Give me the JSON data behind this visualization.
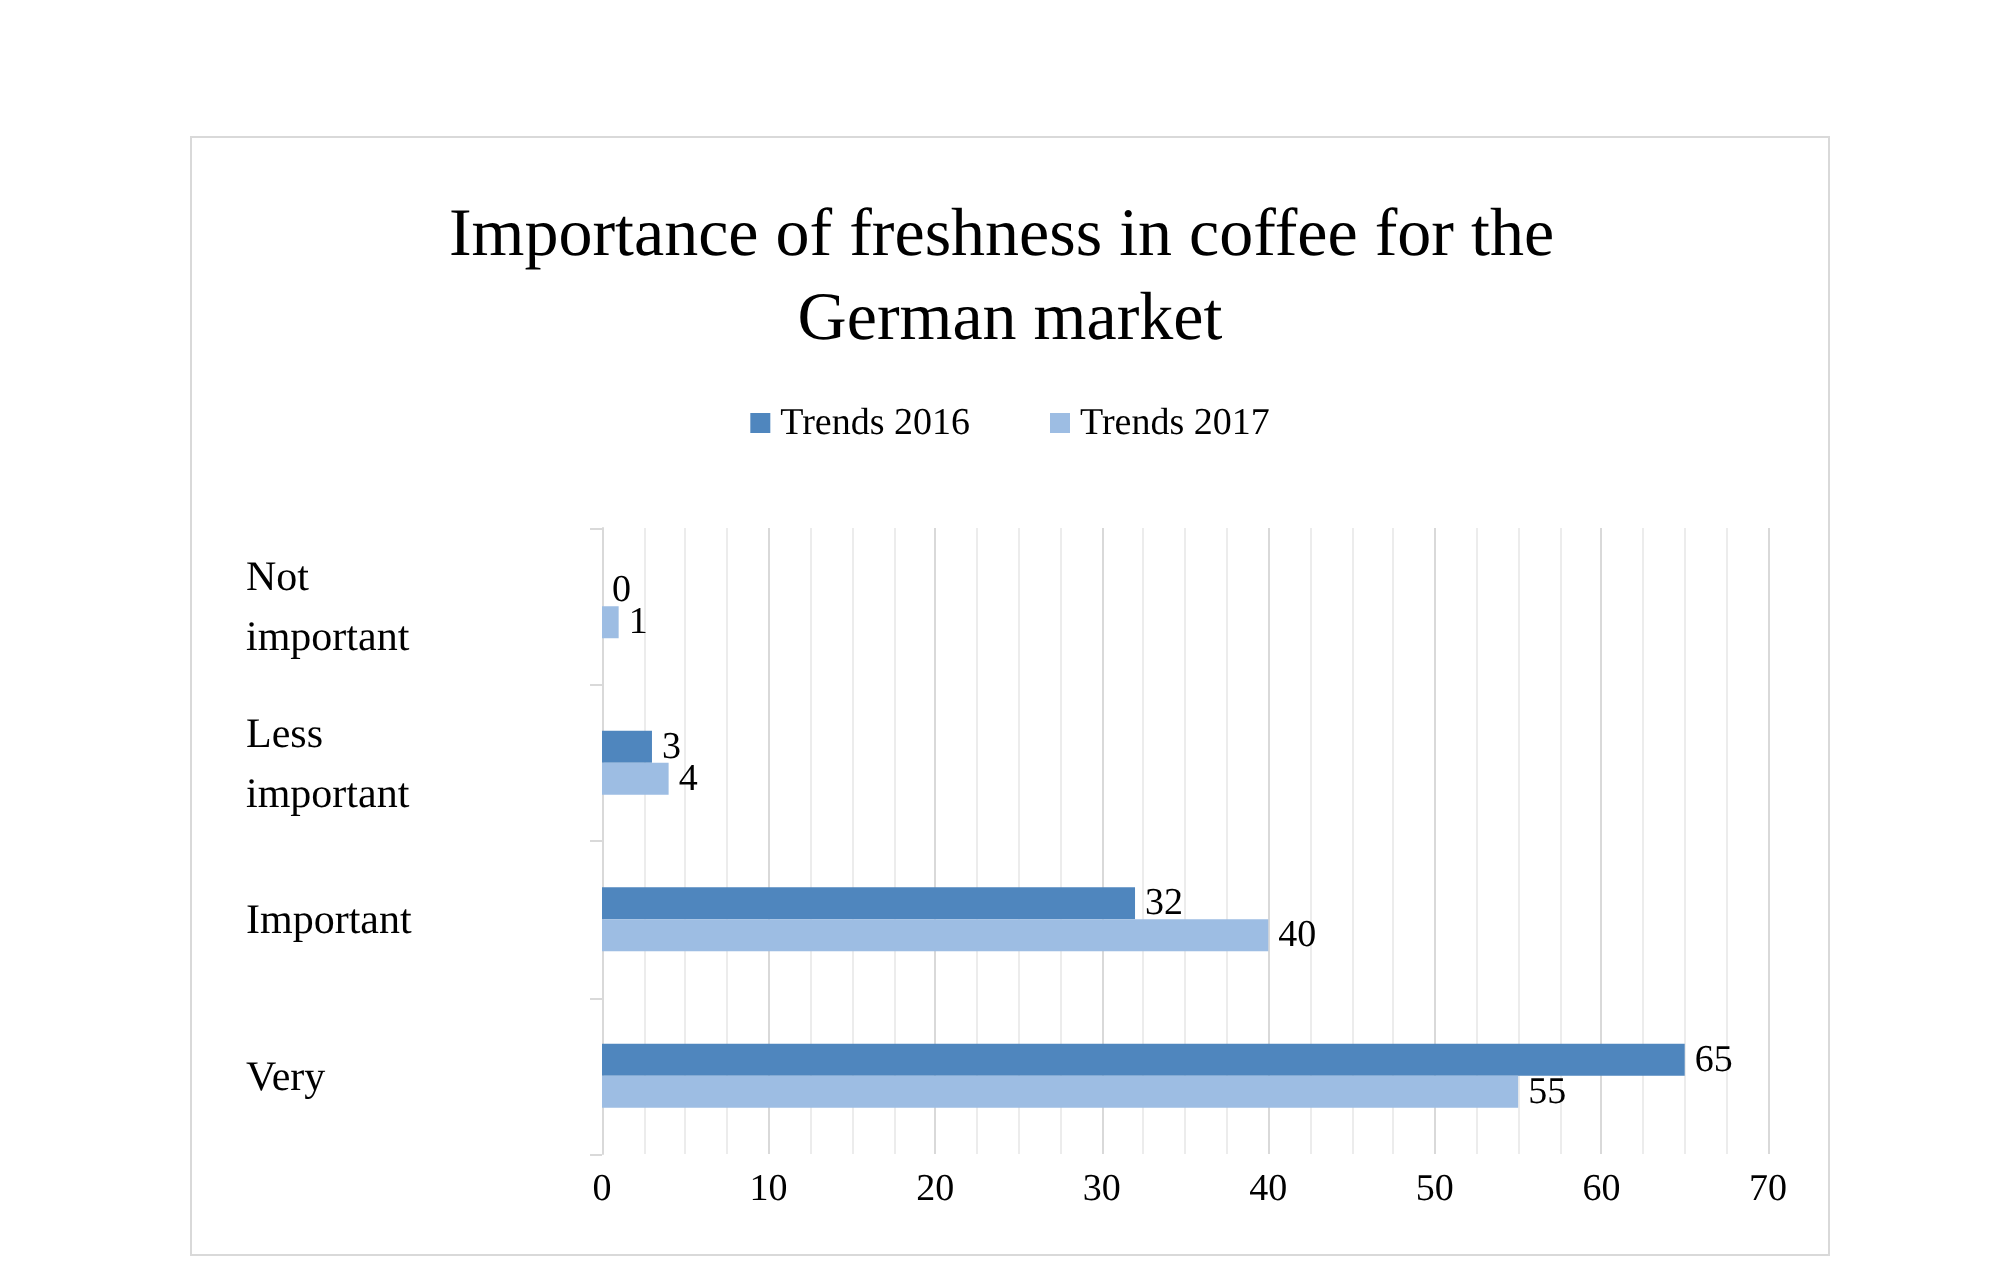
{
  "chart_data": {
    "type": "bar",
    "orientation": "horizontal",
    "title": "Importance of freshness in coffee for the German market",
    "categories": [
      "Not important",
      "Less important",
      "Important",
      "Very"
    ],
    "series": [
      {
        "name": "Trends 2016",
        "color": "#4f86be",
        "values": [
          0,
          3,
          32,
          65
        ]
      },
      {
        "name": "Trends 2017",
        "color": "#9dbde3",
        "values": [
          1,
          4,
          40,
          55
        ]
      }
    ],
    "xlim": [
      0,
      70
    ],
    "xticks": [
      0,
      10,
      20,
      30,
      40,
      50,
      60,
      70
    ],
    "grid": "x",
    "legend": "top",
    "data_labels": true
  }
}
